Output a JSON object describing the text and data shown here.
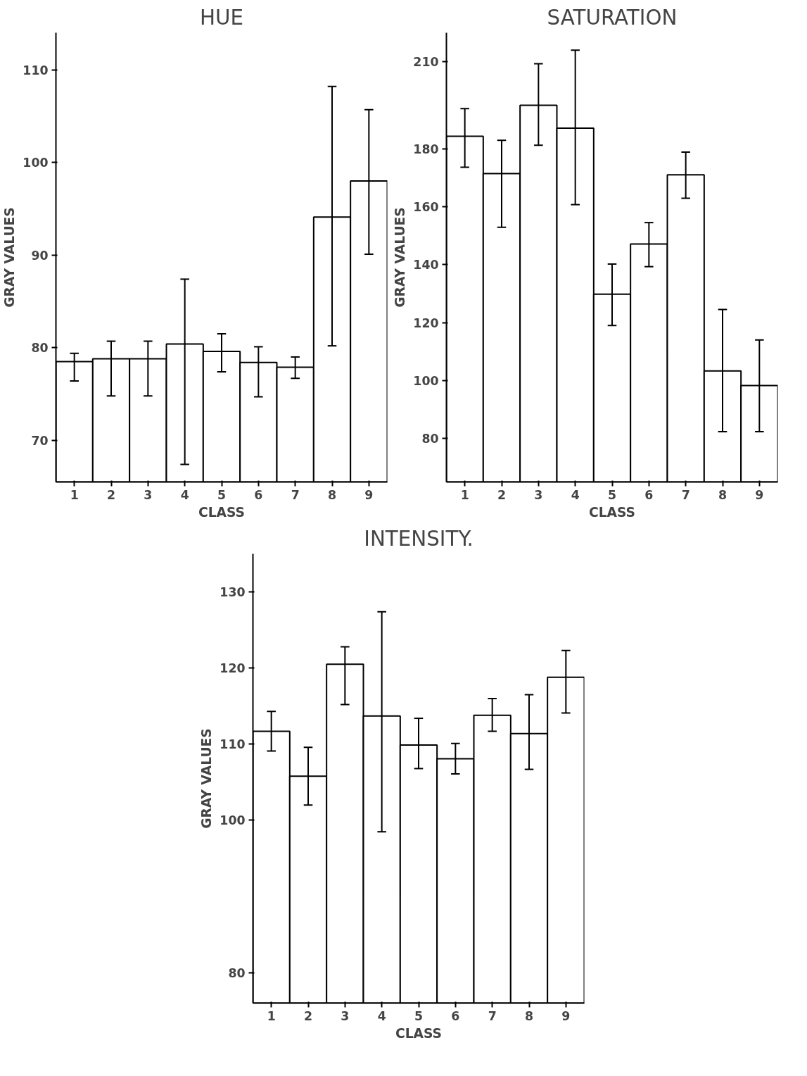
{
  "chart_data": [
    {
      "type": "bar",
      "title": "HUE",
      "xlabel": "CLASS",
      "ylabel": "GRAY VALUES",
      "categories": [
        "1",
        "2",
        "3",
        "4",
        "5",
        "6",
        "7",
        "8",
        "9"
      ],
      "color": "#ffffff",
      "values": [
        78.5,
        78.8,
        78.8,
        80.4,
        79.6,
        78.4,
        77.9,
        94.1,
        98.0
      ],
      "errors": [
        [
          76.4,
          79.4
        ],
        [
          74.8,
          80.7
        ],
        [
          74.8,
          80.7
        ],
        [
          67.4,
          87.4
        ],
        [
          77.4,
          81.5
        ],
        [
          74.7,
          80.1
        ],
        [
          76.7,
          79.0
        ],
        [
          80.2,
          108.2
        ],
        [
          90.1,
          105.7
        ]
      ],
      "ylim": [
        65.5,
        114
      ],
      "yticks": [
        70,
        80,
        90,
        100,
        110
      ],
      "grid": false
    },
    {
      "type": "bar",
      "title": "SATURATION",
      "xlabel": "CLASS",
      "ylabel": "GRAY VALUES",
      "categories": [
        "1",
        "2",
        "3",
        "4",
        "5",
        "6",
        "7",
        "8",
        "9"
      ],
      "color": "#ffffff",
      "values": [
        184.3,
        171.4,
        195.0,
        187.1,
        129.8,
        147.1,
        171.0,
        103.3,
        98.3
      ],
      "errors": [
        [
          173.6,
          193.8
        ],
        [
          152.9,
          182.9
        ],
        [
          181.2,
          209.3
        ],
        [
          160.7,
          214.0
        ],
        [
          119.0,
          140.2
        ],
        [
          139.3,
          154.5
        ],
        [
          162.9,
          178.8
        ],
        [
          82.4,
          124.5
        ],
        [
          82.4,
          114.0
        ]
      ],
      "ylim": [
        65,
        220
      ],
      "yticks": [
        80,
        100,
        120,
        140,
        160,
        180,
        210
      ],
      "grid": false
    },
    {
      "type": "bar",
      "title": "INTENSITY.",
      "xlabel": "CLASS",
      "ylabel": "GRAY VALUES",
      "categories": [
        "1",
        "2",
        "3",
        "4",
        "5",
        "6",
        "7",
        "8",
        "9"
      ],
      "color": "#ffffff",
      "values": [
        111.7,
        105.8,
        120.5,
        113.7,
        109.9,
        108.1,
        113.8,
        111.4,
        118.8
      ],
      "errors": [
        [
          109.1,
          114.3
        ],
        [
          102.0,
          109.6
        ],
        [
          115.2,
          122.8
        ],
        [
          98.5,
          127.4
        ],
        [
          106.8,
          113.4
        ],
        [
          106.1,
          110.1
        ],
        [
          111.7,
          116.0
        ],
        [
          106.7,
          116.5
        ],
        [
          114.1,
          122.3
        ]
      ],
      "ylim": [
        76,
        135
      ],
      "yticks": [
        80,
        100,
        110,
        120,
        130
      ],
      "grid": false
    }
  ]
}
